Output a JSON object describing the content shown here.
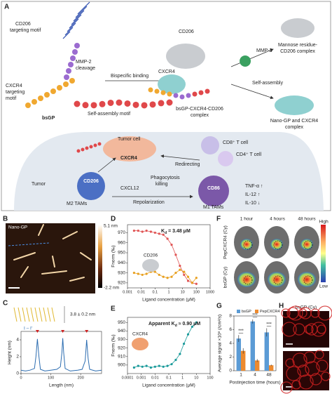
{
  "panel_labels": [
    "A",
    "B",
    "C",
    "D",
    "E",
    "F",
    "G",
    "H"
  ],
  "panel_a": {
    "cd206_motif": [
      "CD206",
      "targeting motif"
    ],
    "mmp2_cleavage": [
      "MMP-2",
      "cleavage"
    ],
    "cxcr4_motif": [
      "CXCR4",
      "targeting",
      "motif"
    ],
    "bsgp": "bsGP",
    "self_assembly_motif": "Self-assembly motif",
    "bispecific_binding": "Bispecific binding",
    "complex_cd206": "CD206",
    "complex_cxcr4": "CXCR4",
    "ternary_complex": [
      "bsGP-CXCR4-CD206",
      "complex"
    ],
    "mmp2": "MMP-2",
    "mannose_complex": [
      "Mannose residue-",
      "CD206 complex"
    ],
    "self_assembly": "Self-assembly",
    "nano_gp_complex": [
      "Nano-GP and CXCR4",
      "complex"
    ],
    "tumor_cell": "Tumor cell",
    "cell_cxcr4": "CXCR4",
    "cd8": "CD8⁺ T cell",
    "cd4": "CD4⁺ T cell",
    "redirecting": "Redirecting",
    "phagocytosis": [
      "Phagocytosis",
      "killing"
    ],
    "cxcl12": "CXCL12",
    "tumor": "Tumor",
    "m2_cd206": "CD206",
    "m2": "M2 TAMs",
    "repolarization": "Repolarization",
    "cd86": "CD86",
    "m1": "M1 TAMs",
    "cytokines": [
      "TNF-α ↑",
      "IL-12 ↑",
      "IL-10 ↓"
    ]
  },
  "panel_b": {
    "title": "Nano-GP",
    "colorbar_max": "5.1 nm",
    "colorbar_min": "-2.2 nm"
  },
  "panel_c": {
    "thickness": "3.8 ± 0.2 nm",
    "profile_label": "I – I′"
  },
  "panel_f": {
    "columns": [
      "1 hour",
      "4 hours",
      "48 hours"
    ],
    "rows": [
      "PepCXCR4 (Cy)",
      "bsGP (Cy)"
    ],
    "scale_high": "High",
    "scale_low": "Low"
  },
  "panel_h": {
    "title": "bsGP (Cy)"
  },
  "chart_data": [
    {
      "type": "line",
      "x_label": "Length (nm)",
      "y_label": "Height (nm)",
      "color": "#2b6cb0",
      "x": [
        0,
        15,
        30,
        45,
        50,
        55,
        60,
        65,
        80,
        100,
        120,
        132,
        137,
        140,
        143,
        148,
        165,
        190,
        205,
        215,
        220,
        225,
        230,
        250,
        270
      ],
      "values": [
        0.4,
        0.3,
        0.4,
        0.6,
        2,
        4.1,
        2,
        0.5,
        0.3,
        0.4,
        0.5,
        0.8,
        2.5,
        4.2,
        2.5,
        0.6,
        0.3,
        0.4,
        0.5,
        1.5,
        4.0,
        1.8,
        0.5,
        0.3,
        0.4
      ],
      "xlim": [
        0,
        270
      ],
      "ylim": [
        0,
        5
      ],
      "xticks": [
        0,
        100,
        200
      ],
      "yticks": [
        0,
        2,
        4
      ]
    },
    {
      "type": "scatter",
      "log_x": true,
      "x_label": "Ligand concentration (μM)",
      "y_label": "Fnorm (‰)",
      "annotation": [
        "K",
        "d",
        " = 3.48 μM"
      ],
      "inset_label": "CD206",
      "x": [
        0.003,
        0.006,
        0.012,
        0.024,
        0.05,
        0.1,
        0.2,
        0.4,
        0.8,
        1.6,
        3.2,
        6.4,
        12.8,
        25,
        50,
        100
      ],
      "series": [
        {
          "color": "#e05555",
          "values": [
            972,
            972,
            971,
            972,
            971,
            970,
            969,
            968,
            964,
            958,
            948,
            937,
            928,
            922,
            920,
            919
          ]
        },
        {
          "color": "#e8a020",
          "values": [
            930,
            929,
            928,
            929,
            931,
            931,
            928,
            926,
            925,
            926,
            930,
            933,
            931,
            926,
            920,
            925
          ]
        }
      ],
      "xlim": [
        0.001,
        1000
      ],
      "ylim": [
        915,
        978
      ],
      "xticks": [
        0.001,
        0.01,
        0.1,
        1,
        10,
        100,
        1000
      ],
      "yticks": [
        920,
        930,
        940,
        950,
        960,
        970
      ]
    },
    {
      "type": "scatter",
      "log_x": true,
      "x_label": "Ligand concentration (μM)",
      "y_label": "Fnorm (‰)",
      "annotation": [
        "Apparent K",
        "d",
        " ≈ 0.90 μM"
      ],
      "inset_label": "CXCR4",
      "x": [
        0.0003,
        0.0006,
        0.0012,
        0.0024,
        0.005,
        0.01,
        0.02,
        0.04,
        0.08,
        0.16,
        0.32,
        0.64,
        1.25,
        2.5,
        5,
        10
      ],
      "series": [
        {
          "color": "#1a9a9a",
          "values": [
            897,
            899,
            898,
            899,
            897,
            898,
            899,
            898,
            899,
            901,
            906,
            913,
            925,
            936,
            945,
            950
          ]
        }
      ],
      "xlim": [
        0.0001,
        100
      ],
      "ylim": [
        890,
        956
      ],
      "xticks": [
        0.0001,
        0.001,
        0.01,
        0.1,
        1,
        10,
        100
      ],
      "yticks": [
        900,
        910,
        920,
        930,
        940,
        950
      ]
    },
    {
      "type": "bar",
      "x_label": "Postinjection time (hours)",
      "y_label": "Average signal ×10⁸ (/cm²/s)",
      "categories": [
        "1",
        "4",
        "48"
      ],
      "series": [
        {
          "name": "bsGP",
          "color": "#5b9bd5",
          "values": [
            4.7,
            7.2,
            5.6
          ],
          "errors": [
            0.5,
            0.3,
            0.6
          ]
        },
        {
          "name": "PepCXCR4",
          "color": "#ed8a2e",
          "values": [
            2.9,
            1.5,
            0.8
          ],
          "errors": [
            0.4,
            0.2,
            0.1
          ]
        }
      ],
      "significance": [
        "***",
        "***",
        "***"
      ],
      "ylim": [
        0,
        8
      ],
      "yticks": [
        0,
        2,
        4,
        6,
        8
      ]
    }
  ]
}
